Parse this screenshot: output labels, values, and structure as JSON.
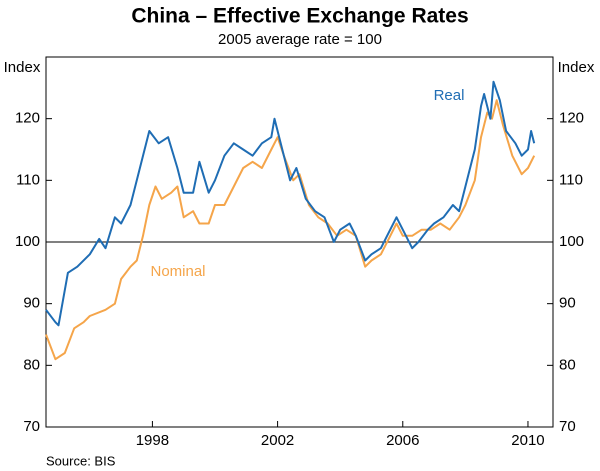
{
  "chart_data": {
    "type": "line",
    "title": "China – Effective Exchange Rates",
    "subtitle": "2005 average rate = 100",
    "y_label": "Index",
    "source": "Source: BIS",
    "xlim": [
      1994.6,
      2010.8
    ],
    "xticks": [
      1998,
      2002,
      2006,
      2010
    ],
    "ylim": [
      70,
      130
    ],
    "yticks": [
      70,
      80,
      90,
      100,
      110,
      120
    ],
    "reference_line": 100,
    "series": [
      {
        "name": "Real",
        "color": "#1f6db4",
        "x": [
          1994.6,
          1994.9,
          1995.0,
          1995.3,
          1995.6,
          1996.0,
          1996.3,
          1996.5,
          1996.8,
          1997.0,
          1997.3,
          1997.6,
          1997.9,
          1998.2,
          1998.5,
          1998.8,
          1999.0,
          1999.3,
          1999.5,
          1999.8,
          2000.0,
          2000.3,
          2000.6,
          2000.9,
          2001.2,
          2001.5,
          2001.8,
          2001.9,
          2002.1,
          2002.4,
          2002.6,
          2002.9,
          2003.2,
          2003.5,
          2003.8,
          2004.0,
          2004.3,
          2004.5,
          2004.8,
          2005.0,
          2005.3,
          2005.5,
          2005.8,
          2006.0,
          2006.3,
          2006.5,
          2006.8,
          2007.0,
          2007.3,
          2007.6,
          2007.8,
          2008.0,
          2008.3,
          2008.5,
          2008.6,
          2008.8,
          2008.9,
          2009.1,
          2009.3,
          2009.6,
          2009.8,
          2010.0,
          2010.1,
          2010.2
        ],
        "values": [
          89,
          87,
          86.5,
          95,
          96,
          98,
          100.5,
          99,
          104,
          103,
          106,
          112,
          118,
          116,
          117,
          112,
          108,
          108,
          113,
          108,
          110,
          114,
          116,
          115,
          114,
          116,
          117,
          120,
          116,
          110,
          112,
          107,
          105,
          104,
          100,
          102,
          103,
          101,
          97,
          98,
          99,
          101,
          104,
          102,
          99,
          100,
          102,
          103,
          104,
          106,
          105,
          109,
          115,
          122,
          124,
          120,
          126,
          123,
          118,
          116,
          114,
          115,
          118,
          116
        ]
      },
      {
        "name": "Nominal",
        "color": "#f5a54a",
        "x": [
          1994.6,
          1994.9,
          1995.2,
          1995.5,
          1995.8,
          1996.0,
          1996.5,
          1996.8,
          1997.0,
          1997.3,
          1997.5,
          1997.7,
          1997.9,
          1998.1,
          1998.3,
          1998.6,
          1998.8,
          1999.0,
          1999.3,
          1999.5,
          1999.8,
          2000.0,
          2000.3,
          2000.6,
          2000.9,
          2001.2,
          2001.5,
          2001.8,
          2002.0,
          2002.2,
          2002.5,
          2002.7,
          2003.0,
          2003.3,
          2003.6,
          2003.9,
          2004.2,
          2004.5,
          2004.8,
          2005.0,
          2005.3,
          2005.6,
          2005.8,
          2006.0,
          2006.3,
          2006.6,
          2006.9,
          2007.2,
          2007.5,
          2007.8,
          2008.0,
          2008.3,
          2008.5,
          2008.7,
          2008.85,
          2009.0,
          2009.2,
          2009.5,
          2009.8,
          2010.0,
          2010.2
        ],
        "values": [
          85,
          81,
          82,
          86,
          87,
          88,
          89,
          90,
          94,
          96,
          97,
          101,
          106,
          109,
          107,
          108,
          109,
          104,
          105,
          103,
          103,
          106,
          106,
          109,
          112,
          113,
          112,
          115,
          117,
          114,
          110,
          111,
          106,
          104,
          103,
          101,
          102,
          101,
          96,
          97,
          98,
          101,
          103,
          101,
          101,
          102,
          102,
          103,
          102,
          104,
          106,
          110,
          117,
          121,
          120,
          123,
          119,
          114,
          111,
          112,
          114
        ]
      }
    ]
  }
}
